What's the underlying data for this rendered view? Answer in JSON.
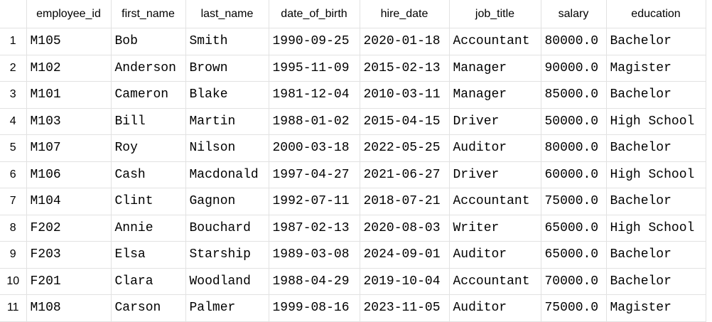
{
  "grid": {
    "columns": [
      "employee_id",
      "first_name",
      "last_name",
      "date_of_birth",
      "hire_date",
      "job_title",
      "salary",
      "education"
    ],
    "rows": [
      [
        "M105",
        "Bob",
        "Smith",
        "1990-09-25",
        "2020-01-18",
        "Accountant",
        "80000.0",
        "Bachelor"
      ],
      [
        "M102",
        "Anderson",
        "Brown",
        "1995-11-09",
        "2015-02-13",
        "Manager",
        "90000.0",
        "Magister"
      ],
      [
        "M101",
        "Cameron",
        "Blake",
        "1981-12-04",
        "2010-03-11",
        "Manager",
        "85000.0",
        "Bachelor"
      ],
      [
        "M103",
        "Bill",
        "Martin",
        "1988-01-02",
        "2015-04-15",
        "Driver",
        "50000.0",
        "High School"
      ],
      [
        "M107",
        "Roy",
        "Nilson",
        "2000-03-18",
        "2022-05-25",
        "Auditor",
        "80000.0",
        "Bachelor"
      ],
      [
        "M106",
        "Cash",
        "Macdonald",
        "1997-04-27",
        "2021-06-27",
        "Driver",
        "60000.0",
        "High School"
      ],
      [
        "M104",
        "Clint",
        "Gagnon",
        "1992-07-11",
        "2018-07-21",
        "Accountant",
        "75000.0",
        "Bachelor"
      ],
      [
        "F202",
        "Annie",
        "Bouchard",
        "1987-02-13",
        "2020-08-03",
        "Writer",
        "65000.0",
        "High School"
      ],
      [
        "F203",
        "Elsa",
        "Starship",
        "1989-03-08",
        "2024-09-01",
        "Auditor",
        "65000.0",
        "Bachelor"
      ],
      [
        "F201",
        "Clara",
        "Woodland",
        "1988-04-29",
        "2019-10-04",
        "Accountant",
        "70000.0",
        "Bachelor"
      ],
      [
        "M108",
        "Carson",
        "Palmer",
        "1999-08-16",
        "2023-11-05",
        "Auditor",
        "75000.0",
        "Magister"
      ]
    ],
    "row_numbers": [
      "1",
      "2",
      "3",
      "4",
      "5",
      "6",
      "7",
      "8",
      "9",
      "10",
      "11"
    ]
  }
}
